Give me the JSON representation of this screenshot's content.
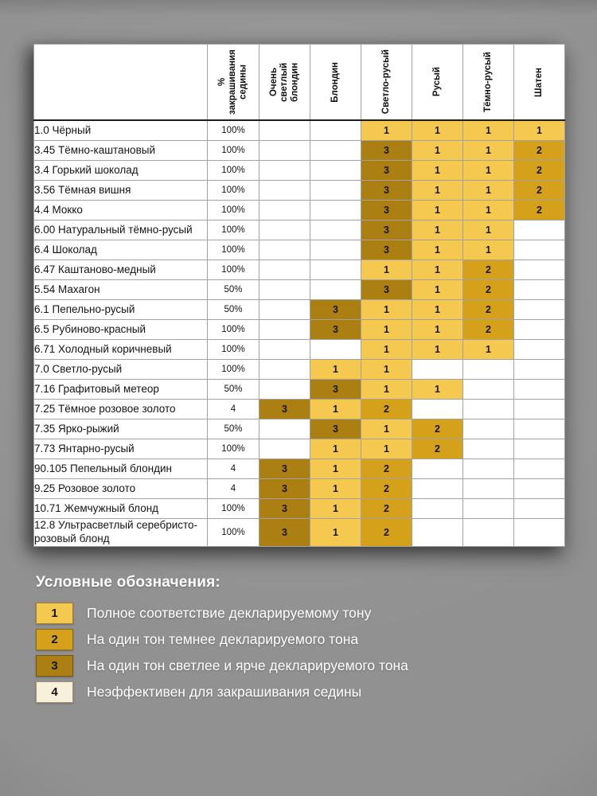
{
  "chart_data": {
    "type": "table",
    "title": "",
    "col_headers": [
      "% закрашивания седины",
      "Очень светлый блондин",
      "Блондин",
      "Светло-русый",
      "Русый",
      "Тёмно-русый",
      "Шатен"
    ],
    "rows": [
      {
        "label": "1.0 Чёрный",
        "gray_coverage": "100%",
        "tones": [
          "",
          "",
          "1",
          "1",
          "1",
          "1"
        ]
      },
      {
        "label": "3.45 Тёмно-каштановый",
        "gray_coverage": "100%",
        "tones": [
          "",
          "",
          "3",
          "1",
          "1",
          "2"
        ]
      },
      {
        "label": "3.4 Горький шоколад",
        "gray_coverage": "100%",
        "tones": [
          "",
          "",
          "3",
          "1",
          "1",
          "2"
        ]
      },
      {
        "label": "3.56 Тёмная вишня",
        "gray_coverage": "100%",
        "tones": [
          "",
          "",
          "3",
          "1",
          "1",
          "2"
        ]
      },
      {
        "label": "4.4 Мокко",
        "gray_coverage": "100%",
        "tones": [
          "",
          "",
          "3",
          "1",
          "1",
          "2"
        ]
      },
      {
        "label": "6.00 Натуральный тёмно-русый",
        "gray_coverage": "100%",
        "tones": [
          "",
          "",
          "3",
          "1",
          "1",
          ""
        ]
      },
      {
        "label": "6.4 Шоколад",
        "gray_coverage": "100%",
        "tones": [
          "",
          "",
          "3",
          "1",
          "1",
          ""
        ]
      },
      {
        "label": "6.47 Каштаново-медный",
        "gray_coverage": "100%",
        "tones": [
          "",
          "",
          "1",
          "1",
          "2",
          ""
        ]
      },
      {
        "label": "5.54 Махагон",
        "gray_coverage": "50%",
        "tones": [
          "",
          "",
          "3",
          "1",
          "2",
          ""
        ]
      },
      {
        "label": "6.1 Пепельно-русый",
        "gray_coverage": "50%",
        "tones": [
          "",
          "3",
          "1",
          "1",
          "2",
          ""
        ]
      },
      {
        "label": "6.5 Рубиново-красный",
        "gray_coverage": "100%",
        "tones": [
          "",
          "3",
          "1",
          "1",
          "2",
          ""
        ]
      },
      {
        "label": "6.71 Холодный коричневый",
        "gray_coverage": "100%",
        "tones": [
          "",
          "",
          "1",
          "1",
          "1",
          ""
        ]
      },
      {
        "label": "7.0 Светло-русый",
        "gray_coverage": "100%",
        "tones": [
          "",
          "1",
          "1",
          "",
          "",
          ""
        ]
      },
      {
        "label": "7.16 Графитовый метеор",
        "gray_coverage": "50%",
        "tones": [
          "",
          "3",
          "1",
          "1",
          "",
          ""
        ]
      },
      {
        "label": "7.25 Тёмное розовое золото",
        "gray_coverage": "4",
        "tones": [
          "3",
          "1",
          "2",
          "",
          "",
          ""
        ]
      },
      {
        "label": "7.35  Ярко-рыжий",
        "gray_coverage": "50%",
        "tones": [
          "",
          "3",
          "1",
          "2",
          "",
          ""
        ]
      },
      {
        "label": "7.73 Янтарно-русый",
        "gray_coverage": "100%",
        "tones": [
          "",
          "1",
          "1",
          "2",
          "",
          ""
        ]
      },
      {
        "label": "90.105 Пепельный блондин",
        "gray_coverage": "4",
        "tones": [
          "3",
          "1",
          "2",
          "",
          "",
          ""
        ]
      },
      {
        "label": "9.25 Розовое золото",
        "gray_coverage": "4",
        "tones": [
          "3",
          "1",
          "2",
          "",
          "",
          ""
        ]
      },
      {
        "label": "10.71 Жемчужный блонд",
        "gray_coverage": "100%",
        "tones": [
          "3",
          "1",
          "2",
          "",
          "",
          ""
        ]
      },
      {
        "label": "12.8 Ультрасветлый серебристо-розовый блонд",
        "gray_coverage": "100%",
        "tones": [
          "3",
          "1",
          "2",
          "",
          "",
          ""
        ]
      }
    ]
  },
  "value_colors": {
    "1": "#F5C94F",
    "2": "#D5A11A",
    "3": "#AC7F12",
    "4": "#F7F0DA"
  },
  "legend": {
    "title": "Условные обозначения:",
    "items": [
      {
        "num": "1",
        "color": "#F5C94F",
        "text": "Полное соответствие декларируемому тону"
      },
      {
        "num": "2",
        "color": "#D5A11A",
        "text": "На один тон темнее декларируемого тона"
      },
      {
        "num": "3",
        "color": "#AC7F12",
        "text": "На один тон светлее и ярче декларируемого тона"
      },
      {
        "num": "4",
        "color": "#F7F0DA",
        "text": "Неэффективен для закрашивания седины"
      }
    ]
  }
}
